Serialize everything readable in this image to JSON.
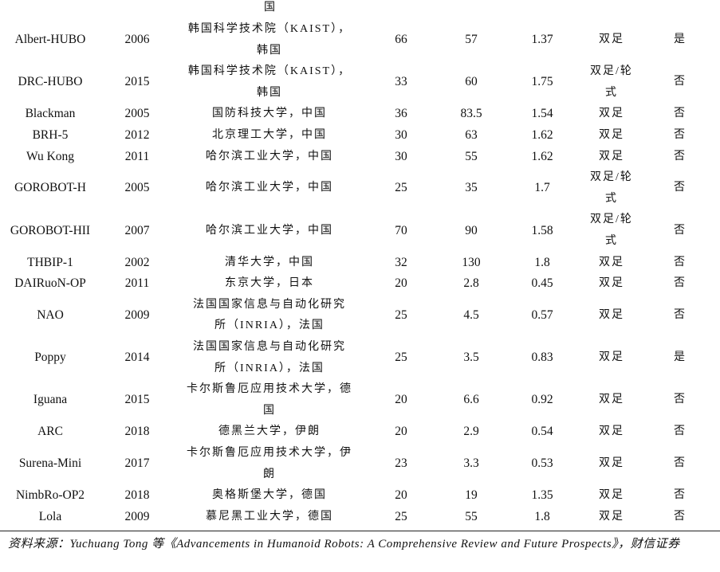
{
  "table": {
    "top_fragment": "国",
    "rows": [
      [
        "Albert-HUBO",
        "2006",
        [
          "韩国科学技术院（KAIST），",
          "韩国"
        ],
        "66",
        "57",
        "1.37",
        [
          "双足"
        ],
        "是"
      ],
      [
        "DRC-HUBO",
        "2015",
        [
          "韩国科学技术院（KAIST），",
          "韩国"
        ],
        "33",
        "60",
        "1.75",
        [
          "双足/轮",
          "式"
        ],
        "否"
      ],
      [
        "Blackman",
        "2005",
        [
          "国防科技大学，中国"
        ],
        "36",
        "83.5",
        "1.54",
        [
          "双足"
        ],
        "否"
      ],
      [
        "BRH-5",
        "2012",
        [
          "北京理工大学，中国"
        ],
        "30",
        "63",
        "1.62",
        [
          "双足"
        ],
        "否"
      ],
      [
        "Wu Kong",
        "2011",
        [
          "哈尔滨工业大学，中国"
        ],
        "30",
        "55",
        "1.62",
        [
          "双足"
        ],
        "否"
      ],
      [
        "GOROBOT-H",
        "2005",
        [
          "哈尔滨工业大学，中国"
        ],
        "25",
        "35",
        "1.7",
        [
          "双足/轮",
          "式"
        ],
        "否"
      ],
      [
        "GOROBOT-HII",
        "2007",
        [
          "哈尔滨工业大学，中国"
        ],
        "70",
        "90",
        "1.58",
        [
          "双足/轮",
          "式"
        ],
        "否"
      ],
      [
        "THBIP-1",
        "2002",
        [
          "清华大学，中国"
        ],
        "32",
        "130",
        "1.8",
        [
          "双足"
        ],
        "否"
      ],
      [
        "DAIRuoN-OP",
        "2011",
        [
          "东京大学，日本"
        ],
        "20",
        "2.8",
        "0.45",
        [
          "双足"
        ],
        "否"
      ],
      [
        "NAO",
        "2009",
        [
          "法国国家信息与自动化研究",
          "所（INRIA），法国"
        ],
        "25",
        "4.5",
        "0.57",
        [
          "双足"
        ],
        "否"
      ],
      [
        "Poppy",
        "2014",
        [
          "法国国家信息与自动化研究",
          "所（INRIA），法国"
        ],
        "25",
        "3.5",
        "0.83",
        [
          "双足"
        ],
        "是"
      ],
      [
        "Iguana",
        "2015",
        [
          "卡尔斯鲁厄应用技术大学，德",
          "国"
        ],
        "20",
        "6.6",
        "0.92",
        [
          "双足"
        ],
        "否"
      ],
      [
        "ARC",
        "2018",
        [
          "德黑兰大学，伊朗"
        ],
        "20",
        "2.9",
        "0.54",
        [
          "双足"
        ],
        "否"
      ],
      [
        "Surena-Mini",
        "2017",
        [
          "卡尔斯鲁厄应用技术大学，伊",
          "朗"
        ],
        "23",
        "3.3",
        "0.53",
        [
          "双足"
        ],
        "否"
      ],
      [
        "NimbRo-OP2",
        "2018",
        [
          "奥格斯堡大学，德国"
        ],
        "20",
        "19",
        "1.35",
        [
          "双足"
        ],
        "否"
      ],
      [
        "Lola",
        "2009",
        [
          "慕尼黑工业大学，德国"
        ],
        "25",
        "55",
        "1.8",
        [
          "双足"
        ],
        "否"
      ]
    ]
  },
  "source": "资料来源：Yuchuang Tong 等《Advancements in Humanoid Robots: A Comprehensive Review and Future Prospects》，财信证券"
}
